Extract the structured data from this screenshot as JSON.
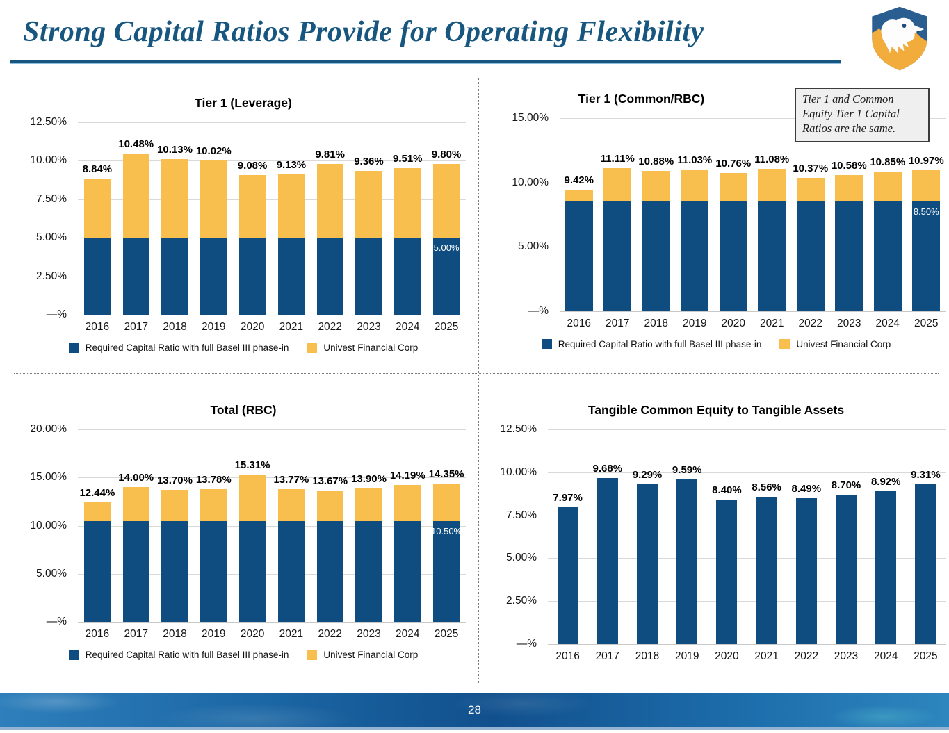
{
  "slide": {
    "title": "Strong Capital Ratios Provide for Operating Flexibility",
    "page_number": "28"
  },
  "colors": {
    "bar_navy": "#0F4C7F",
    "bar_gold": "#F8BE4E",
    "title_blue": "#17567F"
  },
  "note_box": {
    "text": "Tier 1 and Common Equity Tier 1 Capital Ratios are the same."
  },
  "legend": {
    "items": [
      {
        "label": "Required Capital Ratio with full Basel III phase-in",
        "color": "#0F4C7F"
      },
      {
        "label": "Univest Financial Corp",
        "color": "#F8BE4E"
      }
    ]
  },
  "chart_data": [
    {
      "id": "tier1-leverage",
      "type": "bar",
      "stacked": true,
      "title": "Tier 1 (Leverage)",
      "categories": [
        "2016",
        "2017",
        "2018",
        "2019",
        "2020",
        "2021",
        "2022",
        "2023",
        "2024",
        "2025"
      ],
      "series": [
        {
          "name": "Required Capital Ratio with full Basel III phase-in",
          "values": [
            5.0,
            5.0,
            5.0,
            5.0,
            5.0,
            5.0,
            5.0,
            5.0,
            5.0,
            5.0
          ]
        },
        {
          "name": "Univest Financial Corp",
          "values": [
            3.84,
            5.48,
            5.13,
            5.02,
            4.08,
            4.13,
            4.81,
            4.36,
            4.51,
            4.8
          ]
        }
      ],
      "totals": [
        8.84,
        10.48,
        10.13,
        10.02,
        9.08,
        9.13,
        9.81,
        9.36,
        9.51,
        9.8
      ],
      "data_labels": [
        "8.84%",
        "10.48%",
        "10.13%",
        "10.02%",
        "9.08%",
        "9.13%",
        "9.81%",
        "9.36%",
        "9.51%",
        "9.80%"
      ],
      "base_label_on_last_bar": "5.00%",
      "ylim": [
        0,
        12.5
      ],
      "yticks": [
        {
          "value": 12.5,
          "label": "12.50%"
        },
        {
          "value": 10.0,
          "label": "10.00%"
        },
        {
          "value": 7.5,
          "label": "7.50%"
        },
        {
          "value": 5.0,
          "label": "5.00%"
        },
        {
          "value": 2.5,
          "label": "2.50%"
        },
        {
          "value": 0,
          "label": "—%"
        }
      ],
      "grid": true,
      "legend": true,
      "legend_position": "bottom"
    },
    {
      "id": "tier1-common-rbc",
      "type": "bar",
      "stacked": true,
      "title": "Tier 1 (Common/RBC)",
      "categories": [
        "2016",
        "2017",
        "2018",
        "2019",
        "2020",
        "2021",
        "2022",
        "2023",
        "2024",
        "2025"
      ],
      "series": [
        {
          "name": "Required Capital Ratio with full Basel III phase-in",
          "values": [
            8.5,
            8.5,
            8.5,
            8.5,
            8.5,
            8.5,
            8.5,
            8.5,
            8.5,
            8.5
          ]
        },
        {
          "name": "Univest Financial Corp",
          "values": [
            0.92,
            2.61,
            2.38,
            2.53,
            2.26,
            2.58,
            1.87,
            2.08,
            2.35,
            2.47
          ]
        }
      ],
      "totals": [
        9.42,
        11.11,
        10.88,
        11.03,
        10.76,
        11.08,
        10.37,
        10.58,
        10.85,
        10.97
      ],
      "data_labels": [
        "9.42%",
        "11.11%",
        "10.88%",
        "11.03%",
        "10.76%",
        "11.08%",
        "10.37%",
        "10.58%",
        "10.85%",
        "10.97%"
      ],
      "base_label_on_last_bar": "8.50%",
      "ylim": [
        0,
        15
      ],
      "yticks": [
        {
          "value": 15,
          "label": "15.00%"
        },
        {
          "value": 10,
          "label": "10.00%"
        },
        {
          "value": 5,
          "label": "5.00%"
        },
        {
          "value": 0,
          "label": "—%"
        }
      ],
      "grid": true,
      "legend": true,
      "legend_position": "bottom"
    },
    {
      "id": "total-rbc",
      "type": "bar",
      "stacked": true,
      "title": "Total (RBC)",
      "categories": [
        "2016",
        "2017",
        "2018",
        "2019",
        "2020",
        "2021",
        "2022",
        "2023",
        "2024",
        "2025"
      ],
      "series": [
        {
          "name": "Required Capital Ratio with full Basel III phase-in",
          "values": [
            10.5,
            10.5,
            10.5,
            10.5,
            10.5,
            10.5,
            10.5,
            10.5,
            10.5,
            10.5
          ]
        },
        {
          "name": "Univest Financial Corp",
          "values": [
            1.94,
            3.5,
            3.2,
            3.28,
            4.81,
            3.27,
            3.17,
            3.4,
            3.69,
            3.85
          ]
        }
      ],
      "totals": [
        12.44,
        14.0,
        13.7,
        13.78,
        15.31,
        13.77,
        13.67,
        13.9,
        14.19,
        14.35
      ],
      "data_labels": [
        "12.44%",
        "14.00%",
        "13.70%",
        "13.78%",
        "15.31%",
        "13.77%",
        "13.67%",
        "13.90%",
        "14.19%",
        "14.35%"
      ],
      "base_label_on_last_bar": "10.50%",
      "ylim": [
        0,
        20
      ],
      "yticks": [
        {
          "value": 20,
          "label": "20.00%"
        },
        {
          "value": 15,
          "label": "15.00%"
        },
        {
          "value": 10,
          "label": "10.00%"
        },
        {
          "value": 5,
          "label": "5.00%"
        },
        {
          "value": 0,
          "label": "—%"
        }
      ],
      "grid": true,
      "legend": true,
      "legend_position": "bottom"
    },
    {
      "id": "tce-ta",
      "type": "bar",
      "stacked": false,
      "title": "Tangible Common Equity to Tangible Assets",
      "categories": [
        "2016",
        "2017",
        "2018",
        "2019",
        "2020",
        "2021",
        "2022",
        "2023",
        "2024",
        "2025"
      ],
      "series": [
        {
          "name": "Tangible Common Equity to Tangible Assets",
          "values": [
            7.97,
            9.68,
            9.29,
            9.59,
            8.4,
            8.56,
            8.49,
            8.7,
            8.92,
            9.31
          ]
        }
      ],
      "totals": [
        7.97,
        9.68,
        9.29,
        9.59,
        8.4,
        8.56,
        8.49,
        8.7,
        8.92,
        9.31
      ],
      "data_labels": [
        "7.97%",
        "9.68%",
        "9.29%",
        "9.59%",
        "8.40%",
        "8.56%",
        "8.49%",
        "8.70%",
        "8.92%",
        "9.31%"
      ],
      "ylim": [
        0,
        12.5
      ],
      "yticks": [
        {
          "value": 12.5,
          "label": "12.50%"
        },
        {
          "value": 10.0,
          "label": "10.00%"
        },
        {
          "value": 7.5,
          "label": "7.50%"
        },
        {
          "value": 5.0,
          "label": "5.00%"
        },
        {
          "value": 2.5,
          "label": "2.50%"
        },
        {
          "value": 0,
          "label": "—%"
        }
      ],
      "grid": true,
      "legend": false
    }
  ]
}
